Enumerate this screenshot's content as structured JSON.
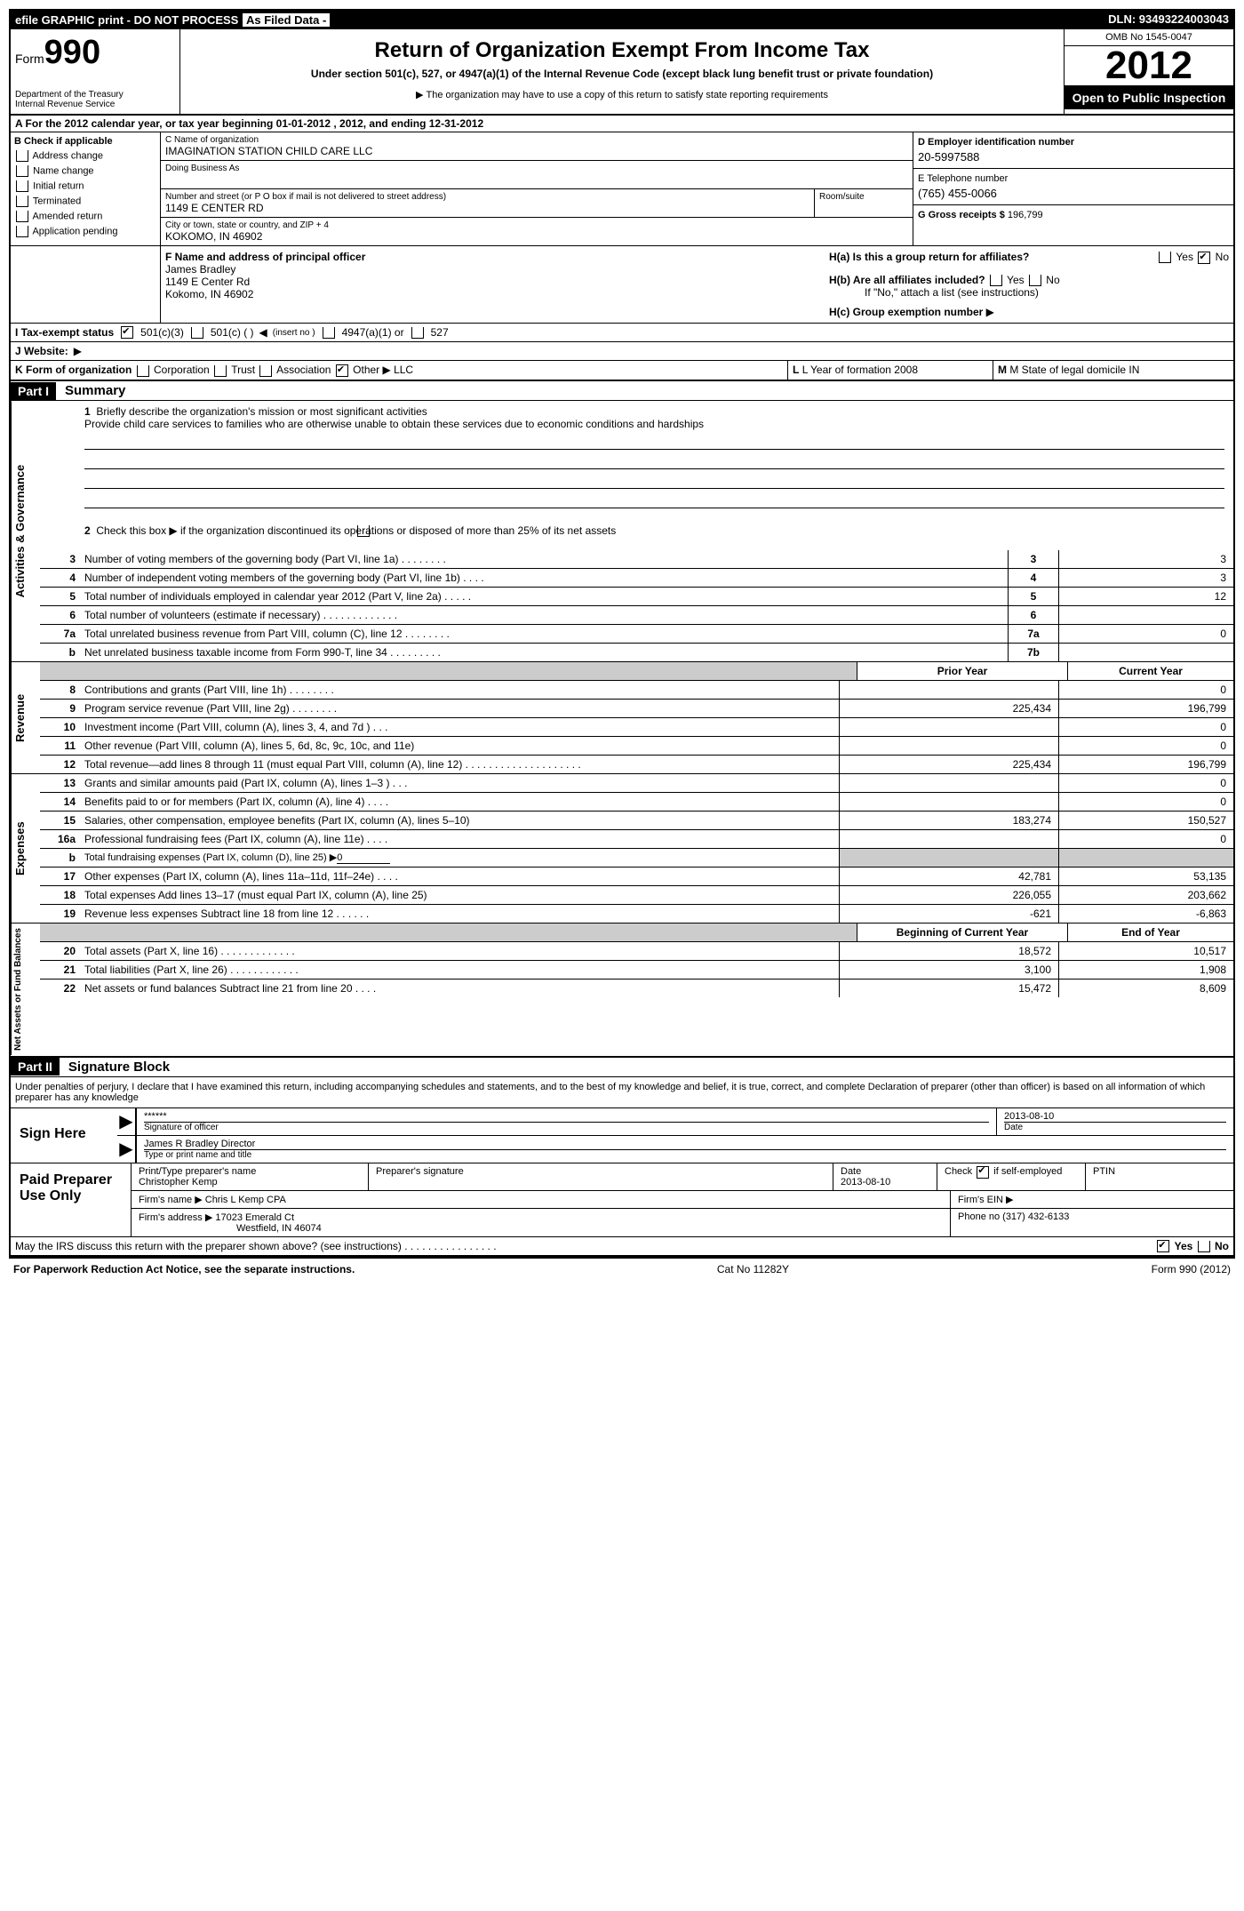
{
  "topbar": {
    "left": "efile GRAPHIC print - DO NOT PROCESS",
    "middle": "As Filed Data -",
    "right": "DLN: 93493224003043"
  },
  "header": {
    "form_prefix": "Form",
    "form_number": "990",
    "dept1": "Department of the Treasury",
    "dept2": "Internal Revenue Service",
    "title": "Return of Organization Exempt From Income Tax",
    "sub1": "Under section 501(c), 527, or 4947(a)(1) of the Internal Revenue Code (except black lung benefit trust or private foundation)",
    "note": "The organization may have to use a copy of this return to satisfy state reporting requirements",
    "omb": "OMB No 1545-0047",
    "year": "2012",
    "inspection": "Open to Public Inspection"
  },
  "rowA": "A  For the 2012 calendar year, or tax year beginning 01-01-2012     , 2012, and ending 12-31-2012",
  "sectionB": {
    "header": "B  Check if applicable",
    "items": [
      "Address change",
      "Name change",
      "Initial return",
      "Terminated",
      "Amended return",
      "Application pending"
    ]
  },
  "sectionC": {
    "name_label": "C Name of organization",
    "name": "IMAGINATION STATION CHILD CARE LLC",
    "dba_label": "Doing Business As",
    "dba": "",
    "street_label": "Number and street (or P O  box if mail is not delivered to street address)",
    "room_label": "Room/suite",
    "street": "1149 E CENTER RD",
    "city_label": "City or town, state or country, and ZIP + 4",
    "city": "KOKOMO, IN  46902"
  },
  "sectionD": {
    "ein_label": "D Employer identification number",
    "ein": "20-5997588",
    "phone_label": "E Telephone number",
    "phone": "(765) 455-0066",
    "gross_label": "G Gross receipts $",
    "gross": "196,799"
  },
  "sectionF": {
    "label": "F   Name and address of principal officer",
    "name": "James Bradley",
    "addr1": "1149 E Center Rd",
    "addr2": "Kokomo, IN  46902"
  },
  "sectionH": {
    "ha": "H(a)  Is this a group return for affiliates?",
    "hb": "H(b)  Are all affiliates included?",
    "hb_note": "If \"No,\" attach a list  (see instructions)",
    "hc": "H(c)   Group exemption number"
  },
  "rowI": {
    "label": "I   Tax-exempt status",
    "opt1": "501(c)(3)",
    "opt2": "501(c) (   )",
    "opt2_hint": "(insert no )",
    "opt3": "4947(a)(1) or",
    "opt4": "527"
  },
  "rowJ": "J   Website:",
  "rowK": {
    "label": "K Form of organization",
    "opts": [
      "Corporation",
      "Trust",
      "Association",
      "Other"
    ],
    "other_val": "LLC",
    "l": "L Year of formation  2008",
    "m": "M State of legal domicile  IN"
  },
  "part1": {
    "label": "Part I",
    "title": "Summary"
  },
  "gov": {
    "side": "Activities & Governance",
    "q1_label": "Briefly describe the organization's mission or most significant activities",
    "q1_text": "Provide child care services to families who are otherwise unable to obtain these services due to economic conditions and hardships",
    "q2": "Check this box ▶          if the organization discontinued its operations or disposed of more than 25% of its net assets",
    "lines": [
      {
        "n": "3",
        "d": "Number of voting members of the governing body (Part VI, line 1a)  .   .   .   .   .   .   .   .",
        "b": "3",
        "v": "3"
      },
      {
        "n": "4",
        "d": "Number of independent voting members of the governing body (Part VI, line 1b)  .   .   .   .",
        "b": "4",
        "v": "3"
      },
      {
        "n": "5",
        "d": "Total number of individuals employed in calendar year 2012 (Part V, line 2a)  .   .   .   .   .",
        "b": "5",
        "v": "12"
      },
      {
        "n": "6",
        "d": "Total number of volunteers (estimate if necessary)  .   .   .   .   .   .   .   .   .   .   .   .   .",
        "b": "6",
        "v": ""
      },
      {
        "n": "7a",
        "d": "Total unrelated business revenue from Part VIII, column (C), line 12  .   .   .   .   .   .   .   .",
        "b": "7a",
        "v": "0"
      },
      {
        "n": "b",
        "d": "Net unrelated business taxable income from Form 990-T, line 34  .   .   .   .   .   .   .   .   .",
        "b": "7b",
        "v": ""
      }
    ]
  },
  "rev": {
    "side": "Revenue",
    "h1": "Prior Year",
    "h2": "Current Year",
    "lines": [
      {
        "n": "8",
        "d": "Contributions and grants (Part VIII, line 1h)  .   .   .   .   .   .   .   .",
        "py": "",
        "cy": "0"
      },
      {
        "n": "9",
        "d": "Program service revenue (Part VIII, line 2g)  .   .   .   .   .   .   .   .",
        "py": "225,434",
        "cy": "196,799"
      },
      {
        "n": "10",
        "d": "Investment income (Part VIII, column (A), lines 3, 4, and 7d )  .   .   .",
        "py": "",
        "cy": "0"
      },
      {
        "n": "11",
        "d": "Other revenue (Part VIII, column (A), lines 5, 6d, 8c, 9c, 10c, and 11e)",
        "py": "",
        "cy": "0"
      },
      {
        "n": "12",
        "d": "Total revenue—add lines 8 through 11 (must equal Part VIII, column (A), line 12) .   .   .   .   .   .   .   .   .   .   .   .   .   .   .   .   .   .   .   .",
        "py": "225,434",
        "cy": "196,799"
      }
    ]
  },
  "exp": {
    "side": "Expenses",
    "lines": [
      {
        "n": "13",
        "d": "Grants and similar amounts paid (Part IX, column (A), lines 1–3 )  .   .   .",
        "py": "",
        "cy": "0"
      },
      {
        "n": "14",
        "d": "Benefits paid to or for members (Part IX, column (A), line 4)  .   .   .   .",
        "py": "",
        "cy": "0"
      },
      {
        "n": "15",
        "d": "Salaries, other compensation, employee benefits (Part IX, column (A), lines 5–10)",
        "py": "183,274",
        "cy": "150,527"
      },
      {
        "n": "16a",
        "d": "Professional fundraising fees (Part IX, column (A), line 11e)  .   .   .   .",
        "py": "",
        "cy": "0"
      },
      {
        "n": "b",
        "d": "Total fundraising expenses (Part IX, column (D), line 25) ▶",
        "sub": "0",
        "py": "shaded",
        "cy": "shaded"
      },
      {
        "n": "17",
        "d": "Other expenses (Part IX, column (A), lines 11a–11d, 11f–24e)  .   .   .   .",
        "py": "42,781",
        "cy": "53,135"
      },
      {
        "n": "18",
        "d": "Total expenses  Add lines 13–17 (must equal Part IX, column (A), line 25)",
        "py": "226,055",
        "cy": "203,662"
      },
      {
        "n": "19",
        "d": "Revenue less expenses  Subtract line 18 from line 12  .   .   .   .   .   .",
        "py": "-621",
        "cy": "-6,863"
      }
    ]
  },
  "net": {
    "side": "Net Assets or Fund Balances",
    "h1": "Beginning of Current Year",
    "h2": "End of Year",
    "lines": [
      {
        "n": "20",
        "d": "Total assets (Part X, line 16)  .   .   .   .   .   .   .   .   .   .   .   .   .",
        "py": "18,572",
        "cy": "10,517"
      },
      {
        "n": "21",
        "d": "Total liabilities (Part X, line 26)  .   .   .   .   .   .   .   .   .   .   .   .",
        "py": "3,100",
        "cy": "1,908"
      },
      {
        "n": "22",
        "d": "Net assets or fund balances  Subtract line 21 from line 20  .   .   .   .",
        "py": "15,472",
        "cy": "8,609"
      }
    ]
  },
  "part2": {
    "label": "Part II",
    "title": "Signature Block"
  },
  "sig": {
    "declaration": "Under penalties of perjury, I declare that I have examined this return, including accompanying schedules and statements, and to the best of my knowledge and belief, it is true, correct, and complete  Declaration of preparer (other than officer) is based on all information of which preparer has any knowledge",
    "sign_here": "Sign Here",
    "sig_stars": "******",
    "sig_label": "Signature of officer",
    "date": "2013-08-10",
    "date_label": "Date",
    "name": "James R Bradley  Director",
    "name_label": "Type or print name and title"
  },
  "prep": {
    "label": "Paid Preparer Use Only",
    "r1_c1_label": "Print/Type preparer's name",
    "r1_c1": "Christopher Kemp",
    "r1_c2_label": "Preparer's signature",
    "r1_c3_label": "Date",
    "r1_c3": "2013-08-10",
    "r1_c4": "Check         if self-employed",
    "r1_c5": "PTIN",
    "r2_label": "Firm's name     ▶",
    "r2": "Chris L Kemp CPA",
    "r2_ein": "Firm's EIN ▶",
    "r3_label": "Firm's address ▶",
    "r3_a": "17023 Emerald Ct",
    "r3_b": "Westfield, IN  46074",
    "r3_phone": "Phone no  (317) 432-6133"
  },
  "discuss": "May the IRS discuss this return with the preparer shown above? (see instructions)  .   .   .   .   .   .   .   .   .   .   .   .   .   .   .   .",
  "footer": {
    "left": "For Paperwork Reduction Act Notice, see the separate instructions.",
    "mid": "Cat No  11282Y",
    "right": "Form 990 (2012)"
  }
}
